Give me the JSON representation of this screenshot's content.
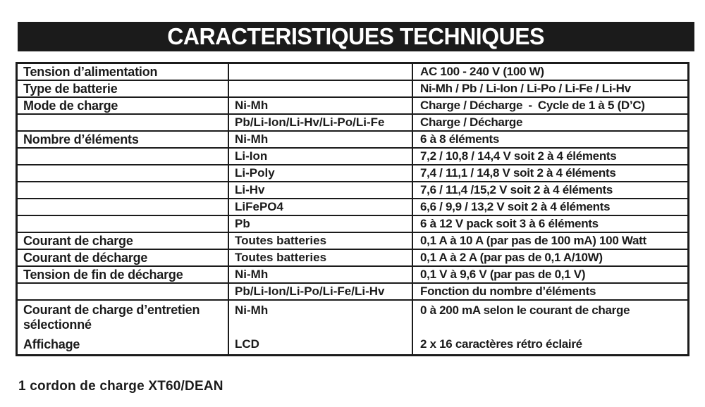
{
  "header": {
    "title": "CARACTERISTIQUES TECHNIQUES"
  },
  "table": {
    "rows": [
      {
        "c1": "Tension d’alimentation",
        "c2": "",
        "c3": "AC 100 - 240 V (100 W)"
      },
      {
        "c1": "Type de batterie",
        "c2": "",
        "c3": "Ni-Mh / Pb / Li-Ion / Li-Po / Li-Fe / Li-Hv"
      },
      {
        "c1": "Mode de charge",
        "c2": "Ni-Mh",
        "c3": "Charge / Décharge - Cycle de 1 à 5 (D’C)"
      },
      {
        "c1": "",
        "c2": "Pb/Li-Ion/Li-Hv/Li-Po/Li-Fe",
        "c3": "Charge / Décharge"
      },
      {
        "c1": "Nombre d’éléments",
        "c2": "Ni-Mh",
        "c3": "6 à 8 éléments"
      },
      {
        "c1": "",
        "c2": "Li-Ion",
        "c3": "7,2 / 10,8 / 14,4 V soit 2 à 4 éléments"
      },
      {
        "c1": "",
        "c2": "Li-Poly",
        "c3": "7,4 / 11,1 / 14,8 V soit 2 à 4 éléments"
      },
      {
        "c1": "",
        "c2": "Li-Hv",
        "c3": "7,6 / 11,4 /15,2 V soit 2 à 4 éléments"
      },
      {
        "c1": "",
        "c2": "LiFePO4",
        "c3": "6,6 / 9,9 / 13,2 V soit 2 à 4 éléments"
      },
      {
        "c1": "",
        "c2": "Pb",
        "c3": "6 à 12 V pack soit 3 à 6 éléments"
      },
      {
        "c1": "Courant de charge",
        "c2": "Toutes batteries",
        "c3": "0,1 A à 10 A (par pas de 100 mA) 100 Watt"
      },
      {
        "c1": "Courant de décharge",
        "c2": "Toutes batteries",
        "c3": "0,1 A à 2 A (par pas de 0,1 A/10W)"
      },
      {
        "c1": "Tension de fin de décharge",
        "c2": "Ni-Mh",
        "c3": "0,1 V à 9,6 V (par pas de 0,1 V)"
      },
      {
        "c1": "",
        "c2": "Pb/Li-Ion/Li-Po/Li-Fe/Li-Hv",
        "c3": "Fonction du nombre d’éléments"
      }
    ],
    "merged_row": {
      "label_top": "Courant de charge d’entretien sélectionné",
      "type_top": "Ni-Mh",
      "value_top": "0 à 200 mA selon le courant de charge",
      "label_bottom": "Affichage",
      "type_bottom": "LCD",
      "value_bottom": "2 x 16 caractères rétro éclairé"
    }
  },
  "footer": {
    "note": "1 cordon de charge XT60/DEAN"
  }
}
